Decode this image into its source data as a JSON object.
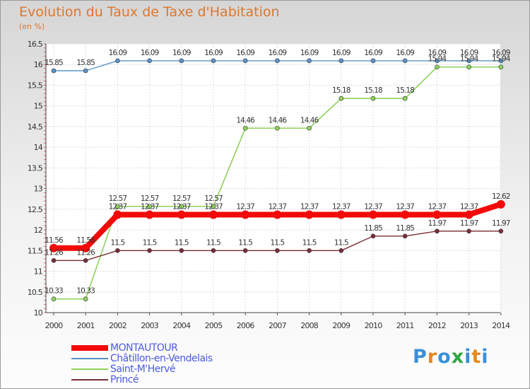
{
  "title": "Evolution du Taux de Taxe d'Habitation",
  "subtitle": "(en %)",
  "logo": {
    "letters": [
      "P",
      "r",
      "o",
      "x",
      "i",
      "t",
      "i"
    ],
    "colors": [
      "#3a8fd9",
      "#e58a1f",
      "#3a8fd9",
      "#2fa843",
      "#3a8fd9",
      "#e58a1f",
      "#3a8fd9"
    ]
  },
  "chart_data": {
    "type": "line",
    "x": [
      "2000",
      "2001",
      "2002",
      "2003",
      "2004",
      "2005",
      "2006",
      "2007",
      "2008",
      "2009",
      "2010",
      "2011",
      "2012",
      "2013",
      "2014"
    ],
    "ylim": [
      10,
      16.5
    ],
    "yticks": [
      "10",
      "10.5",
      "11",
      "11.5",
      "12",
      "12.5",
      "13",
      "13.5",
      "14",
      "14.5",
      "15",
      "15.5",
      "16",
      "16.5"
    ],
    "grid": true,
    "legend_position": "bottom-left",
    "series": [
      {
        "name": "Châtillon-en-Vendelais",
        "color": "#5b93c8",
        "width": 1.4,
        "marker": 3,
        "values": [
          15.85,
          15.85,
          16.09,
          16.09,
          16.09,
          16.09,
          16.09,
          16.09,
          16.09,
          16.09,
          16.09,
          16.09,
          16.09,
          16.09,
          16.09
        ],
        "labels": [
          "15.85",
          "15.85",
          "16.09",
          "16.09",
          "16.09",
          "16.09",
          "16.09",
          "16.09",
          "16.09",
          "16.09",
          "16.09",
          "16.09",
          "16.09",
          "16.09",
          "16.09"
        ]
      },
      {
        "name": "Saint-M'Hervé",
        "color": "#8fd15d",
        "width": 1.6,
        "marker": 3,
        "values": [
          10.33,
          10.33,
          12.57,
          12.57,
          12.57,
          12.57,
          14.46,
          14.46,
          14.46,
          15.18,
          15.18,
          15.18,
          15.94,
          15.94,
          15.94
        ],
        "labels": [
          "10.33",
          "10.33",
          "12.57",
          "12.57",
          "12.57",
          "12.57",
          "14.46",
          "14.46",
          "14.46",
          "15.18",
          "15.18",
          "15.18",
          "15.94",
          "15.94",
          "15.94"
        ]
      },
      {
        "name": "Princé",
        "color": "#7a2e36",
        "width": 1.4,
        "marker": 3,
        "values": [
          11.26,
          11.26,
          11.5,
          11.5,
          11.5,
          11.5,
          11.5,
          11.5,
          11.5,
          11.5,
          11.85,
          11.85,
          11.97,
          11.97,
          11.97
        ],
        "labels": [
          "11.26",
          "11.26",
          "11.5",
          "11.5",
          "11.5",
          "11.5",
          "11.5",
          "11.5",
          "11.5",
          "11.5",
          "11.85",
          "11.85",
          "11.97",
          "11.97",
          "11.97"
        ]
      },
      {
        "name": "MONTAUTOUR",
        "color": "#f20a0a",
        "width": 8,
        "marker": 6,
        "values": [
          11.56,
          11.56,
          12.37,
          12.37,
          12.37,
          12.37,
          12.37,
          12.37,
          12.37,
          12.37,
          12.37,
          12.37,
          12.37,
          12.37,
          12.62
        ],
        "labels": [
          "11.56",
          "11.56",
          "12.37",
          "12.37",
          "12.37",
          "12.37",
          "12.37",
          "12.37",
          "12.37",
          "12.37",
          "12.37",
          "12.37",
          "12.37",
          "12.37",
          "12.62"
        ]
      }
    ],
    "legend_order": [
      "MONTAUTOUR",
      "Châtillon-en-Vendelais",
      "Saint-M'Hervé",
      "Princé"
    ]
  }
}
